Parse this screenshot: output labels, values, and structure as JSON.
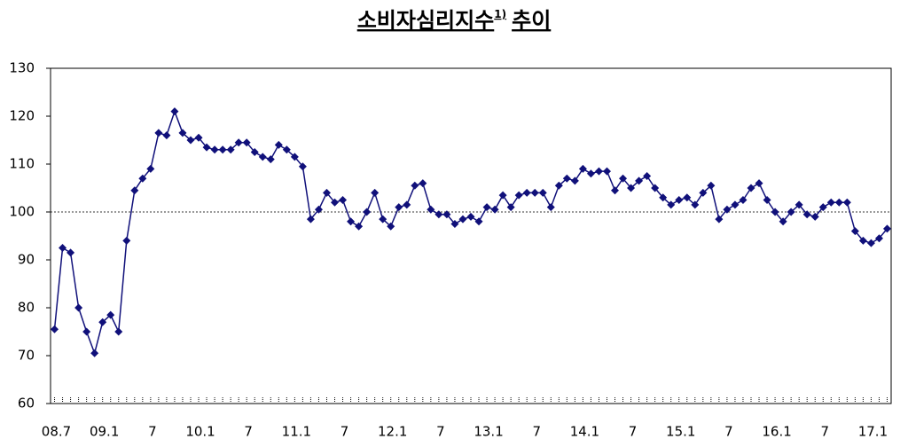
{
  "chart_data": {
    "type": "line",
    "title": "소비자심리지수",
    "title_superscript": "1)",
    "title_suffix": "추이",
    "categories": [
      "08.7",
      null,
      null,
      null,
      null,
      null,
      "09.1",
      null,
      null,
      null,
      null,
      null,
      "7",
      null,
      null,
      null,
      null,
      null,
      "10.1",
      null,
      null,
      null,
      null,
      null,
      "7",
      null,
      null,
      null,
      null,
      null,
      "11.1",
      null,
      null,
      null,
      null,
      null,
      "7",
      null,
      null,
      null,
      null,
      null,
      "12.1",
      null,
      null,
      null,
      null,
      null,
      "7",
      null,
      null,
      null,
      null,
      null,
      "13.1",
      null,
      null,
      null,
      null,
      null,
      "7",
      null,
      null,
      null,
      null,
      null,
      "14.1",
      null,
      null,
      null,
      null,
      null,
      "7",
      null,
      null,
      null,
      null,
      null,
      "15.1",
      null,
      null,
      null,
      null,
      null,
      "7",
      null,
      null,
      null,
      null,
      null,
      "16.1",
      null,
      null,
      null,
      null,
      null,
      "7",
      null,
      null,
      null,
      null,
      null,
      "17.1",
      null,
      null
    ],
    "values": [
      75.5,
      92.5,
      91.5,
      80,
      75,
      70.5,
      77,
      78.5,
      75,
      94,
      104.5,
      107,
      109,
      116.5,
      116,
      121,
      116.5,
      115,
      115.5,
      113.5,
      113,
      113,
      113,
      114.5,
      114.5,
      112.5,
      111.5,
      111,
      114,
      113,
      111.5,
      109.5,
      98.5,
      100.5,
      104,
      102,
      102.5,
      98,
      97,
      100,
      104,
      98.5,
      97,
      101,
      101.5,
      105.5,
      106,
      100.5,
      99.5,
      99.5,
      97.5,
      98.5,
      99,
      98,
      101,
      100.5,
      103.5,
      101,
      103.5,
      104,
      104,
      104,
      101,
      105.5,
      107,
      106.5,
      109,
      108,
      108.5,
      108.5,
      104.5,
      107,
      105,
      106.5,
      107.5,
      105,
      103,
      101.5,
      102.5,
      103,
      101.5,
      104,
      105.5,
      98.5,
      100.5,
      101.5,
      102.5,
      105,
      106,
      102.5,
      100,
      98,
      100,
      101.5,
      99.5,
      99,
      101,
      102,
      102,
      102,
      96,
      94,
      93.5,
      94.5,
      96.5
    ],
    "color": "#10107a",
    "ylim": [
      60,
      130
    ],
    "yticks": [
      60,
      70,
      80,
      90,
      100,
      110,
      120,
      130
    ],
    "reference_line": 100,
    "grid": false
  }
}
